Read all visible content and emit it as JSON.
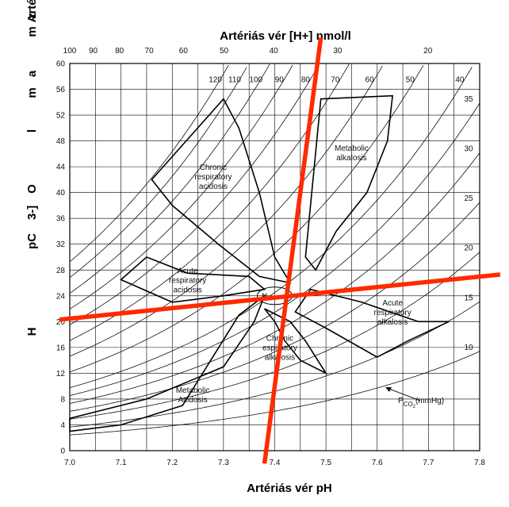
{
  "chart_data": {
    "type": "line",
    "title": "Artériás vér [H+] nmol/l",
    "xlabel": "Artériás vér pH",
    "ylabel": "Artériás H 3 - ] pC O l m a m z",
    "ylabel_chars": [
      "m",
      "z",
      "m",
      "a",
      "l",
      "O",
      "pC",
      "3-]",
      "H",
      "Artériás"
    ],
    "xlim": [
      7.0,
      7.8
    ],
    "ylim": [
      0,
      60
    ],
    "x_ticks": [
      "7.0",
      "7.1",
      "7.2",
      "7.3",
      "7.4",
      "7.5",
      "7.6",
      "7.7",
      "7.8"
    ],
    "y_ticks": [
      "0",
      "4",
      "8",
      "12",
      "16",
      "20",
      "24",
      "28",
      "32",
      "36",
      "40",
      "44",
      "48",
      "52",
      "56",
      "60"
    ],
    "top_ticks": [
      "100",
      "90",
      "80",
      "70",
      "60",
      "50",
      "40",
      "30",
      "20"
    ],
    "top_tick_values": [
      100,
      90,
      80,
      70,
      60,
      50,
      40,
      30,
      20
    ],
    "grid": true,
    "isopleth_labels": [
      "120",
      "110",
      "100",
      "90",
      "80",
      "70",
      "60",
      "50",
      "40",
      "35",
      "30",
      "25",
      "20",
      "15",
      "10"
    ],
    "isopleth_values": [
      120,
      110,
      100,
      90,
      80,
      70,
      60,
      50,
      40,
      35,
      30,
      25,
      20,
      15,
      10
    ],
    "pco2_key": "P CO2 (mmHg)",
    "pco2_key_parts": {
      "p": "P",
      "sub": "CO",
      "subsub": "2",
      "unit": "(mmHg)"
    },
    "regions": [
      {
        "name": "Chronic respiratory acidosis",
        "lines": [
          "Chronic",
          "respiratory",
          "acidosis"
        ],
        "points": [
          [
            7.16,
            42
          ],
          [
            7.3,
            54.5
          ],
          [
            7.33,
            50
          ],
          [
            7.37,
            40
          ],
          [
            7.4,
            30
          ],
          [
            7.43,
            26
          ],
          [
            7.37,
            27
          ],
          [
            7.29,
            32
          ],
          [
            7.2,
            38
          ]
        ]
      },
      {
        "name": "Metabolic alkalosis",
        "lines": [
          "Metabolic",
          "alkalosis"
        ],
        "points": [
          [
            7.46,
            30
          ],
          [
            7.49,
            54.5
          ],
          [
            7.63,
            55
          ],
          [
            7.62,
            48
          ],
          [
            7.58,
            40
          ],
          [
            7.52,
            34
          ],
          [
            7.48,
            28
          ]
        ]
      },
      {
        "name": "Acute respiratory acidosis",
        "lines": [
          "Acute",
          "respiratory",
          "acidosis"
        ],
        "points": [
          [
            7.1,
            26.5
          ],
          [
            7.15,
            30
          ],
          [
            7.23,
            27.5
          ],
          [
            7.35,
            27
          ],
          [
            7.38,
            25
          ],
          [
            7.3,
            24
          ],
          [
            7.2,
            23
          ]
        ]
      },
      {
        "name": "Acute respiratory alkalosis",
        "lines": [
          "Acute",
          "respiratory",
          "alkalosis"
        ],
        "points": [
          [
            7.47,
            25
          ],
          [
            7.57,
            23
          ],
          [
            7.68,
            20
          ],
          [
            7.74,
            20
          ],
          [
            7.66,
            17
          ],
          [
            7.6,
            14.5
          ],
          [
            7.5,
            19
          ],
          [
            7.44,
            21.5
          ]
        ]
      },
      {
        "name": "Chronic respiratory alkalosis",
        "lines": [
          "Chronic",
          "espiratory",
          "alkalosis"
        ],
        "points": [
          [
            7.38,
            22
          ],
          [
            7.43,
            20
          ],
          [
            7.46,
            17
          ],
          [
            7.5,
            12
          ],
          [
            7.45,
            14
          ],
          [
            7.42,
            17
          ],
          [
            7.4,
            20
          ]
        ]
      },
      {
        "name": "Metabolic Acidosis",
        "lines": [
          "Metabolic",
          "Acidosis"
        ],
        "points": [
          [
            7.0,
            5
          ],
          [
            7.15,
            8
          ],
          [
            7.3,
            13
          ],
          [
            7.36,
            20
          ],
          [
            7.38,
            24
          ],
          [
            7.33,
            21
          ],
          [
            7.22,
            7
          ],
          [
            7.1,
            4
          ],
          [
            7.0,
            3
          ]
        ]
      }
    ],
    "center_label": "N",
    "normal_point": [
      7.4,
      24
    ],
    "annotations": [
      {
        "type": "line",
        "from": [
          7.38,
          -2
        ],
        "to": [
          7.49,
          64
        ]
      },
      {
        "type": "line",
        "from": [
          6.98,
          20.3
        ],
        "to": [
          7.84,
          27.3
        ]
      }
    ]
  }
}
